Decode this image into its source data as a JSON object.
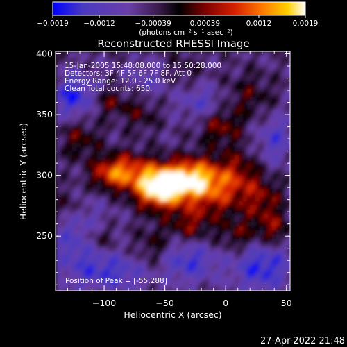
{
  "chart_data": {
    "type": "heatmap",
    "title": "Reconstructed RHESSI Image",
    "xlabel": "Heliocentric X (arcsec)",
    "ylabel": "Heliocentric Y (arcsec)",
    "xlim": [
      -140,
      53
    ],
    "ylim": [
      205,
      402
    ],
    "x_ticks": [
      {
        "value": -100,
        "label": "−100"
      },
      {
        "value": -50,
        "label": "−50"
      },
      {
        "value": 0,
        "label": "0"
      },
      {
        "value": 50,
        "label": "50"
      }
    ],
    "y_ticks": [
      {
        "value": 250,
        "label": "250"
      },
      {
        "value": 300,
        "label": "300"
      },
      {
        "value": 350,
        "label": "350"
      },
      {
        "value": 400,
        "label": "400"
      }
    ],
    "colorbar": {
      "range": [
        -0.0019,
        0.0019
      ],
      "ticks": [
        {
          "value": -0.0019,
          "label": "−0.0019"
        },
        {
          "value": -0.0012,
          "label": "−0.0012"
        },
        {
          "value": -0.00039,
          "label": "−0.00039"
        },
        {
          "value": 0.00039,
          "label": "0.00039"
        },
        {
          "value": 0.0012,
          "label": "0.0012"
        },
        {
          "value": 0.0019,
          "label": "0.0019"
        }
      ],
      "units": "(photons cm⁻² s⁻¹ asec⁻²)",
      "colors": [
        "#0000ff",
        "#4a3ac0",
        "#6a3fa8",
        "#3a1a4a",
        "#000000",
        "#7a0000",
        "#d62000",
        "#ff7a00",
        "#ffd000",
        "#ffffff"
      ]
    },
    "info_lines": [
      "15-Jan-2005 15:48:08.000 to 15:50:28.000",
      "Detectors: 3F 4F 5F 6F 7F 8F, Att 0",
      "Energy Range: 12.0 - 25.0 keV",
      "Clean     Total counts: 650."
    ],
    "peak_label": "Position of Peak = [-55,288]",
    "peak": {
      "x": -55,
      "y": 288
    }
  },
  "timestamp": "27-Apr-2022 21:48"
}
